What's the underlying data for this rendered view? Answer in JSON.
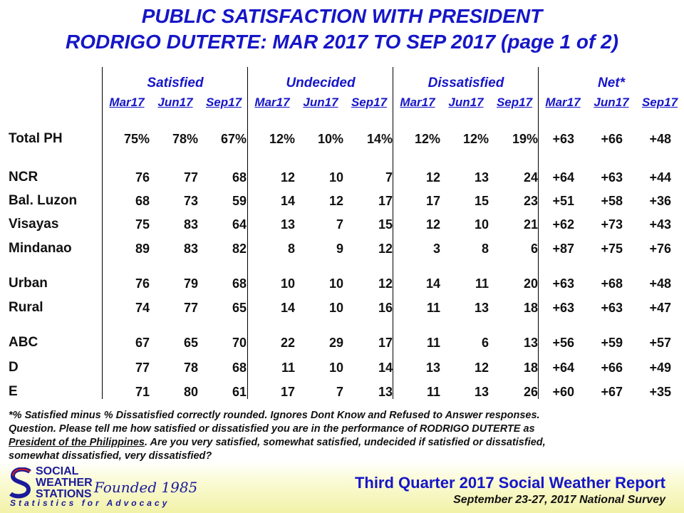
{
  "title_line1": "PUBLIC SATISFACTION  WITH PRESIDENT",
  "title_line2": "RODRIGO DUTERTE: MAR 2017 TO SEP 2017 (page 1 of 2)",
  "groups": [
    "Satisfied",
    "Undecided",
    "Dissatisfied",
    "Net*"
  ],
  "periods": [
    "Mar17",
    "Jun17",
    "Sep17"
  ],
  "rows": [
    {
      "label": "Total PH",
      "values": [
        "75%",
        "78%",
        "67%",
        "12%",
        "10%",
        "14%",
        "12%",
        "12%",
        "19%",
        "+63",
        "+66",
        "+48"
      ]
    },
    {
      "label": "NCR",
      "values": [
        "76",
        "77",
        "68",
        "12",
        "10",
        "7",
        "12",
        "13",
        "24",
        "+64",
        "+63",
        "+44"
      ]
    },
    {
      "label": "Bal. Luzon",
      "values": [
        "68",
        "73",
        "59",
        "14",
        "12",
        "17",
        "17",
        "15",
        "23",
        "+51",
        "+58",
        "+36"
      ]
    },
    {
      "label": "Visayas",
      "values": [
        "75",
        "83",
        "64",
        "13",
        "7",
        "15",
        "12",
        "10",
        "21",
        "+62",
        "+73",
        "+43"
      ]
    },
    {
      "label": "Mindanao",
      "values": [
        "89",
        "83",
        "82",
        "8",
        "9",
        "12",
        "3",
        "8",
        "6",
        "+87",
        "+75",
        "+76"
      ]
    },
    {
      "label": "Urban",
      "values": [
        "76",
        "79",
        "68",
        "10",
        "10",
        "12",
        "14",
        "11",
        "20",
        "+63",
        "+68",
        "+48"
      ]
    },
    {
      "label": "Rural",
      "values": [
        "74",
        "77",
        "65",
        "14",
        "10",
        "16",
        "11",
        "13",
        "18",
        "+63",
        "+63",
        "+47"
      ]
    },
    {
      "label": "ABC",
      "values": [
        "67",
        "65",
        "70",
        "22",
        "29",
        "17",
        "11",
        "6",
        "13",
        "+56",
        "+59",
        "+57"
      ]
    },
    {
      "label": "D",
      "values": [
        "77",
        "78",
        "68",
        "11",
        "10",
        "14",
        "13",
        "12",
        "18",
        "+64",
        "+66",
        "+49"
      ]
    },
    {
      "label": "E",
      "values": [
        "71",
        "80",
        "61",
        "17",
        "7",
        "13",
        "11",
        "13",
        "26",
        "+60",
        "+67",
        "+35"
      ]
    }
  ],
  "footnote": {
    "line1": "*% Satisfied  minus  % Dissatisfied  correctly  rounded.  Ignores  Dont Know  and Refused  to Answer  responses.",
    "line2": "Question.  Please  tell me how satisfied  or dissatisfied  you are in the performance  of RODRIGO DUTERTE  as",
    "line3_underlined": "President  of the Philippines",
    "line3_rest": ".  Are you very satisfied,  somewhat  satisfied,  undecided  if satisfied  or dissatisfied,",
    "line4": "somewhat  dissatisfied,  very dissatisfied?"
  },
  "logo": {
    "line1": "SOCIAL",
    "line2": "WEATHER",
    "line3": "STATIONS",
    "founded": "Founded 1985",
    "tagline": "Statistics for Advocacy"
  },
  "report_title": "Third Quarter 2017 Social Weather Report",
  "survey_dates": "September 23-27, 2017 National Survey",
  "colors": {
    "title": "#1616c8",
    "logo": "#1a1a9a",
    "band": "#f2f2a8"
  }
}
